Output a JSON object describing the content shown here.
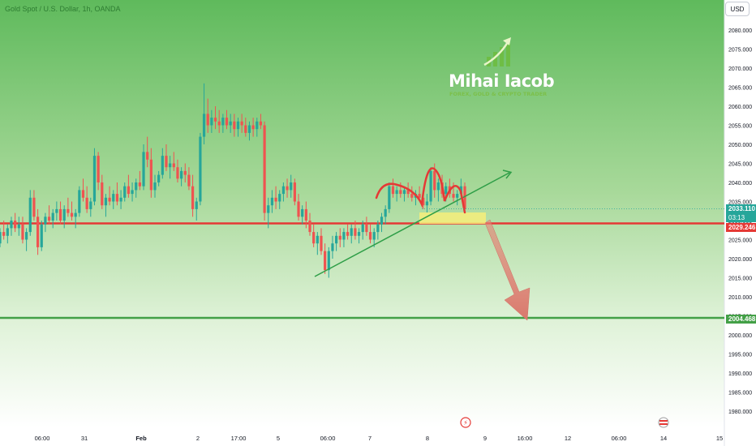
{
  "header": {
    "symbol_title": "Gold Spot / U.S. Dollar, 1h, OANDA",
    "currency_label": "USD"
  },
  "watermark": {
    "name": "Mihai Iacob",
    "tagline": "FOREX, GOLD & CRYPTO TRADER",
    "logo_icon": "rising-chart-arrow-icon"
  },
  "price_labels": {
    "current_price": "2033.110",
    "countdown": "03:13",
    "resistance_line": "2029.246",
    "target_line": "2004.468"
  },
  "colors": {
    "resistance_line": "#e53935",
    "target_line": "#43a047",
    "trendline": "#2e9e47",
    "bull_candle": "#26a69a",
    "bear_candle": "#ef5350",
    "price_tag_current": "#26a69a",
    "zone_fill": "#f6ee7a",
    "arrow_fill": "#e07b70",
    "pattern_stroke": "#e53935"
  },
  "chart_data": {
    "type": "candlestick",
    "title": "Gold Spot / U.S. Dollar, 1h, OANDA",
    "y_axis": {
      "ticks": [
        "2080.000",
        "2075.000",
        "2070.000",
        "2065.000",
        "2060.000",
        "2055.000",
        "2050.000",
        "2045.000",
        "2040.000",
        "2035.000",
        "2030.000",
        "2025.000",
        "2020.000",
        "2015.000",
        "2010.000",
        "2005.000",
        "2000.000",
        "1995.000",
        "1990.000",
        "1985.000",
        "1980.000"
      ],
      "range": [
        1978,
        2082
      ]
    },
    "x_axis": {
      "ticks": [
        "06:00",
        "31",
        "Feb",
        "2",
        "17:00",
        "5",
        "06:00",
        "7",
        "8",
        "9",
        "16:00",
        "12",
        "06:00",
        "14",
        "15"
      ]
    },
    "horizontal_levels": [
      {
        "value": 2029.246,
        "role": "resistance"
      },
      {
        "value": 2004.468,
        "role": "target"
      }
    ],
    "candle_path": [
      [
        2024,
        2028,
        2023,
        2027
      ],
      [
        2027,
        2030,
        2025,
        2026
      ],
      [
        2026,
        2029,
        2024,
        2028
      ],
      [
        2028,
        2031,
        2026,
        2030
      ],
      [
        2030,
        2032,
        2027,
        2028
      ],
      [
        2028,
        2031,
        2026,
        2029
      ],
      [
        2029,
        2031,
        2024,
        2025
      ],
      [
        2025,
        2028,
        2022,
        2027
      ],
      [
        2027,
        2038,
        2026,
        2036
      ],
      [
        2036,
        2038,
        2030,
        2031
      ],
      [
        2031,
        2033,
        2021,
        2023
      ],
      [
        2023,
        2030,
        2022,
        2029
      ],
      [
        2029,
        2032,
        2027,
        2031
      ],
      [
        2031,
        2034,
        2029,
        2030
      ],
      [
        2030,
        2033,
        2028,
        2032
      ],
      [
        2032,
        2035,
        2030,
        2033
      ],
      [
        2033,
        2035,
        2029,
        2030
      ],
      [
        2030,
        2034,
        2028,
        2033
      ],
      [
        2033,
        2036,
        2031,
        2032
      ],
      [
        2032,
        2035,
        2030,
        2031
      ],
      [
        2031,
        2033,
        2028,
        2032
      ],
      [
        2032,
        2039,
        2031,
        2038
      ],
      [
        2038,
        2041,
        2035,
        2036
      ],
      [
        2036,
        2039,
        2032,
        2033
      ],
      [
        2033,
        2036,
        2031,
        2035
      ],
      [
        2035,
        2049,
        2034,
        2047
      ],
      [
        2047,
        2048,
        2038,
        2040
      ],
      [
        2040,
        2042,
        2033,
        2034
      ],
      [
        2034,
        2037,
        2031,
        2036
      ],
      [
        2036,
        2039,
        2034,
        2035
      ],
      [
        2035,
        2038,
        2033,
        2037
      ],
      [
        2037,
        2040,
        2034,
        2035
      ],
      [
        2035,
        2038,
        2033,
        2036
      ],
      [
        2036,
        2040,
        2035,
        2039
      ],
      [
        2039,
        2042,
        2036,
        2037
      ],
      [
        2037,
        2040,
        2035,
        2038
      ],
      [
        2038,
        2041,
        2036,
        2040
      ],
      [
        2040,
        2043,
        2038,
        2039
      ],
      [
        2039,
        2050,
        2038,
        2048
      ],
      [
        2048,
        2052,
        2044,
        2046
      ],
      [
        2046,
        2049,
        2036,
        2038
      ],
      [
        2038,
        2042,
        2036,
        2040
      ],
      [
        2040,
        2043,
        2039,
        2042
      ],
      [
        2042,
        2049,
        2041,
        2047
      ],
      [
        2047,
        2050,
        2043,
        2044
      ],
      [
        2044,
        2047,
        2041,
        2045
      ],
      [
        2045,
        2048,
        2043,
        2044
      ],
      [
        2044,
        2046,
        2040,
        2041
      ],
      [
        2041,
        2044,
        2039,
        2043
      ],
      [
        2043,
        2045,
        2040,
        2042
      ],
      [
        2042,
        2044,
        2038,
        2039
      ],
      [
        2039,
        2042,
        2031,
        2033
      ],
      [
        2033,
        2036,
        2030,
        2035
      ],
      [
        2035,
        2053,
        2034,
        2052
      ],
      [
        2052,
        2066,
        2050,
        2058
      ],
      [
        2058,
        2062,
        2053,
        2055
      ],
      [
        2055,
        2059,
        2053,
        2057
      ],
      [
        2057,
        2060,
        2054,
        2056
      ],
      [
        2056,
        2059,
        2053,
        2055
      ],
      [
        2055,
        2058,
        2053,
        2057
      ],
      [
        2057,
        2059,
        2054,
        2055
      ],
      [
        2055,
        2058,
        2053,
        2056
      ],
      [
        2056,
        2058,
        2052,
        2054
      ],
      [
        2054,
        2057,
        2052,
        2056
      ],
      [
        2056,
        2058,
        2053,
        2055
      ],
      [
        2055,
        2057,
        2052,
        2053
      ],
      [
        2053,
        2056,
        2051,
        2055
      ],
      [
        2055,
        2057,
        2052,
        2054
      ],
      [
        2054,
        2057,
        2052,
        2056
      ],
      [
        2056,
        2058,
        2054,
        2055
      ],
      [
        2055,
        2056,
        2030,
        2032
      ],
      [
        2032,
        2036,
        2028,
        2034
      ],
      [
        2034,
        2038,
        2032,
        2036
      ],
      [
        2036,
        2039,
        2033,
        2035
      ],
      [
        2035,
        2038,
        2033,
        2037
      ],
      [
        2037,
        2040,
        2035,
        2039
      ],
      [
        2039,
        2041,
        2036,
        2038
      ],
      [
        2038,
        2042,
        2036,
        2040
      ],
      [
        2040,
        2041,
        2034,
        2035
      ],
      [
        2035,
        2037,
        2030,
        2031
      ],
      [
        2031,
        2034,
        2029,
        2033
      ],
      [
        2033,
        2035,
        2028,
        2030
      ],
      [
        2030,
        2032,
        2026,
        2027
      ],
      [
        2027,
        2029,
        2023,
        2024
      ],
      [
        2024,
        2027,
        2021,
        2026
      ],
      [
        2026,
        2028,
        2021,
        2022
      ],
      [
        2022,
        2024,
        2016,
        2017
      ],
      [
        2017,
        2023,
        2015,
        2022
      ],
      [
        2022,
        2026,
        2020,
        2024
      ],
      [
        2024,
        2027,
        2022,
        2026
      ],
      [
        2026,
        2028,
        2023,
        2025
      ],
      [
        2025,
        2028,
        2023,
        2027
      ],
      [
        2027,
        2029,
        2025,
        2026
      ],
      [
        2026,
        2029,
        2024,
        2028
      ],
      [
        2028,
        2030,
        2025,
        2026
      ],
      [
        2026,
        2028,
        2024,
        2027
      ],
      [
        2027,
        2030,
        2025,
        2029
      ],
      [
        2029,
        2031,
        2026,
        2027
      ],
      [
        2027,
        2029,
        2024,
        2025
      ],
      [
        2025,
        2028,
        2023,
        2027
      ],
      [
        2027,
        2030,
        2025,
        2029
      ],
      [
        2029,
        2032,
        2027,
        2031
      ],
      [
        2031,
        2034,
        2029,
        2033
      ],
      [
        2033,
        2040,
        2032,
        2039
      ],
      [
        2039,
        2041,
        2036,
        2037
      ],
      [
        2037,
        2039,
        2035,
        2038
      ],
      [
        2038,
        2040,
        2036,
        2037
      ],
      [
        2037,
        2039,
        2035,
        2038
      ],
      [
        2038,
        2040,
        2036,
        2037
      ],
      [
        2037,
        2039,
        2035,
        2036
      ],
      [
        2036,
        2038,
        2034,
        2037
      ],
      [
        2037,
        2039,
        2035,
        2036
      ],
      [
        2036,
        2038,
        2033,
        2034
      ],
      [
        2034,
        2037,
        2032,
        2035
      ],
      [
        2035,
        2044,
        2034,
        2043
      ],
      [
        2043,
        2045,
        2036,
        2038
      ],
      [
        2038,
        2041,
        2035,
        2040
      ],
      [
        2040,
        2042,
        2036,
        2037
      ],
      [
        2037,
        2040,
        2035,
        2039
      ],
      [
        2039,
        2041,
        2036,
        2037
      ],
      [
        2037,
        2040,
        2035,
        2036
      ],
      [
        2036,
        2038,
        2034,
        2037
      ],
      [
        2037,
        2041,
        2036,
        2039
      ],
      [
        2039,
        2040,
        2032,
        2033
      ]
    ]
  }
}
